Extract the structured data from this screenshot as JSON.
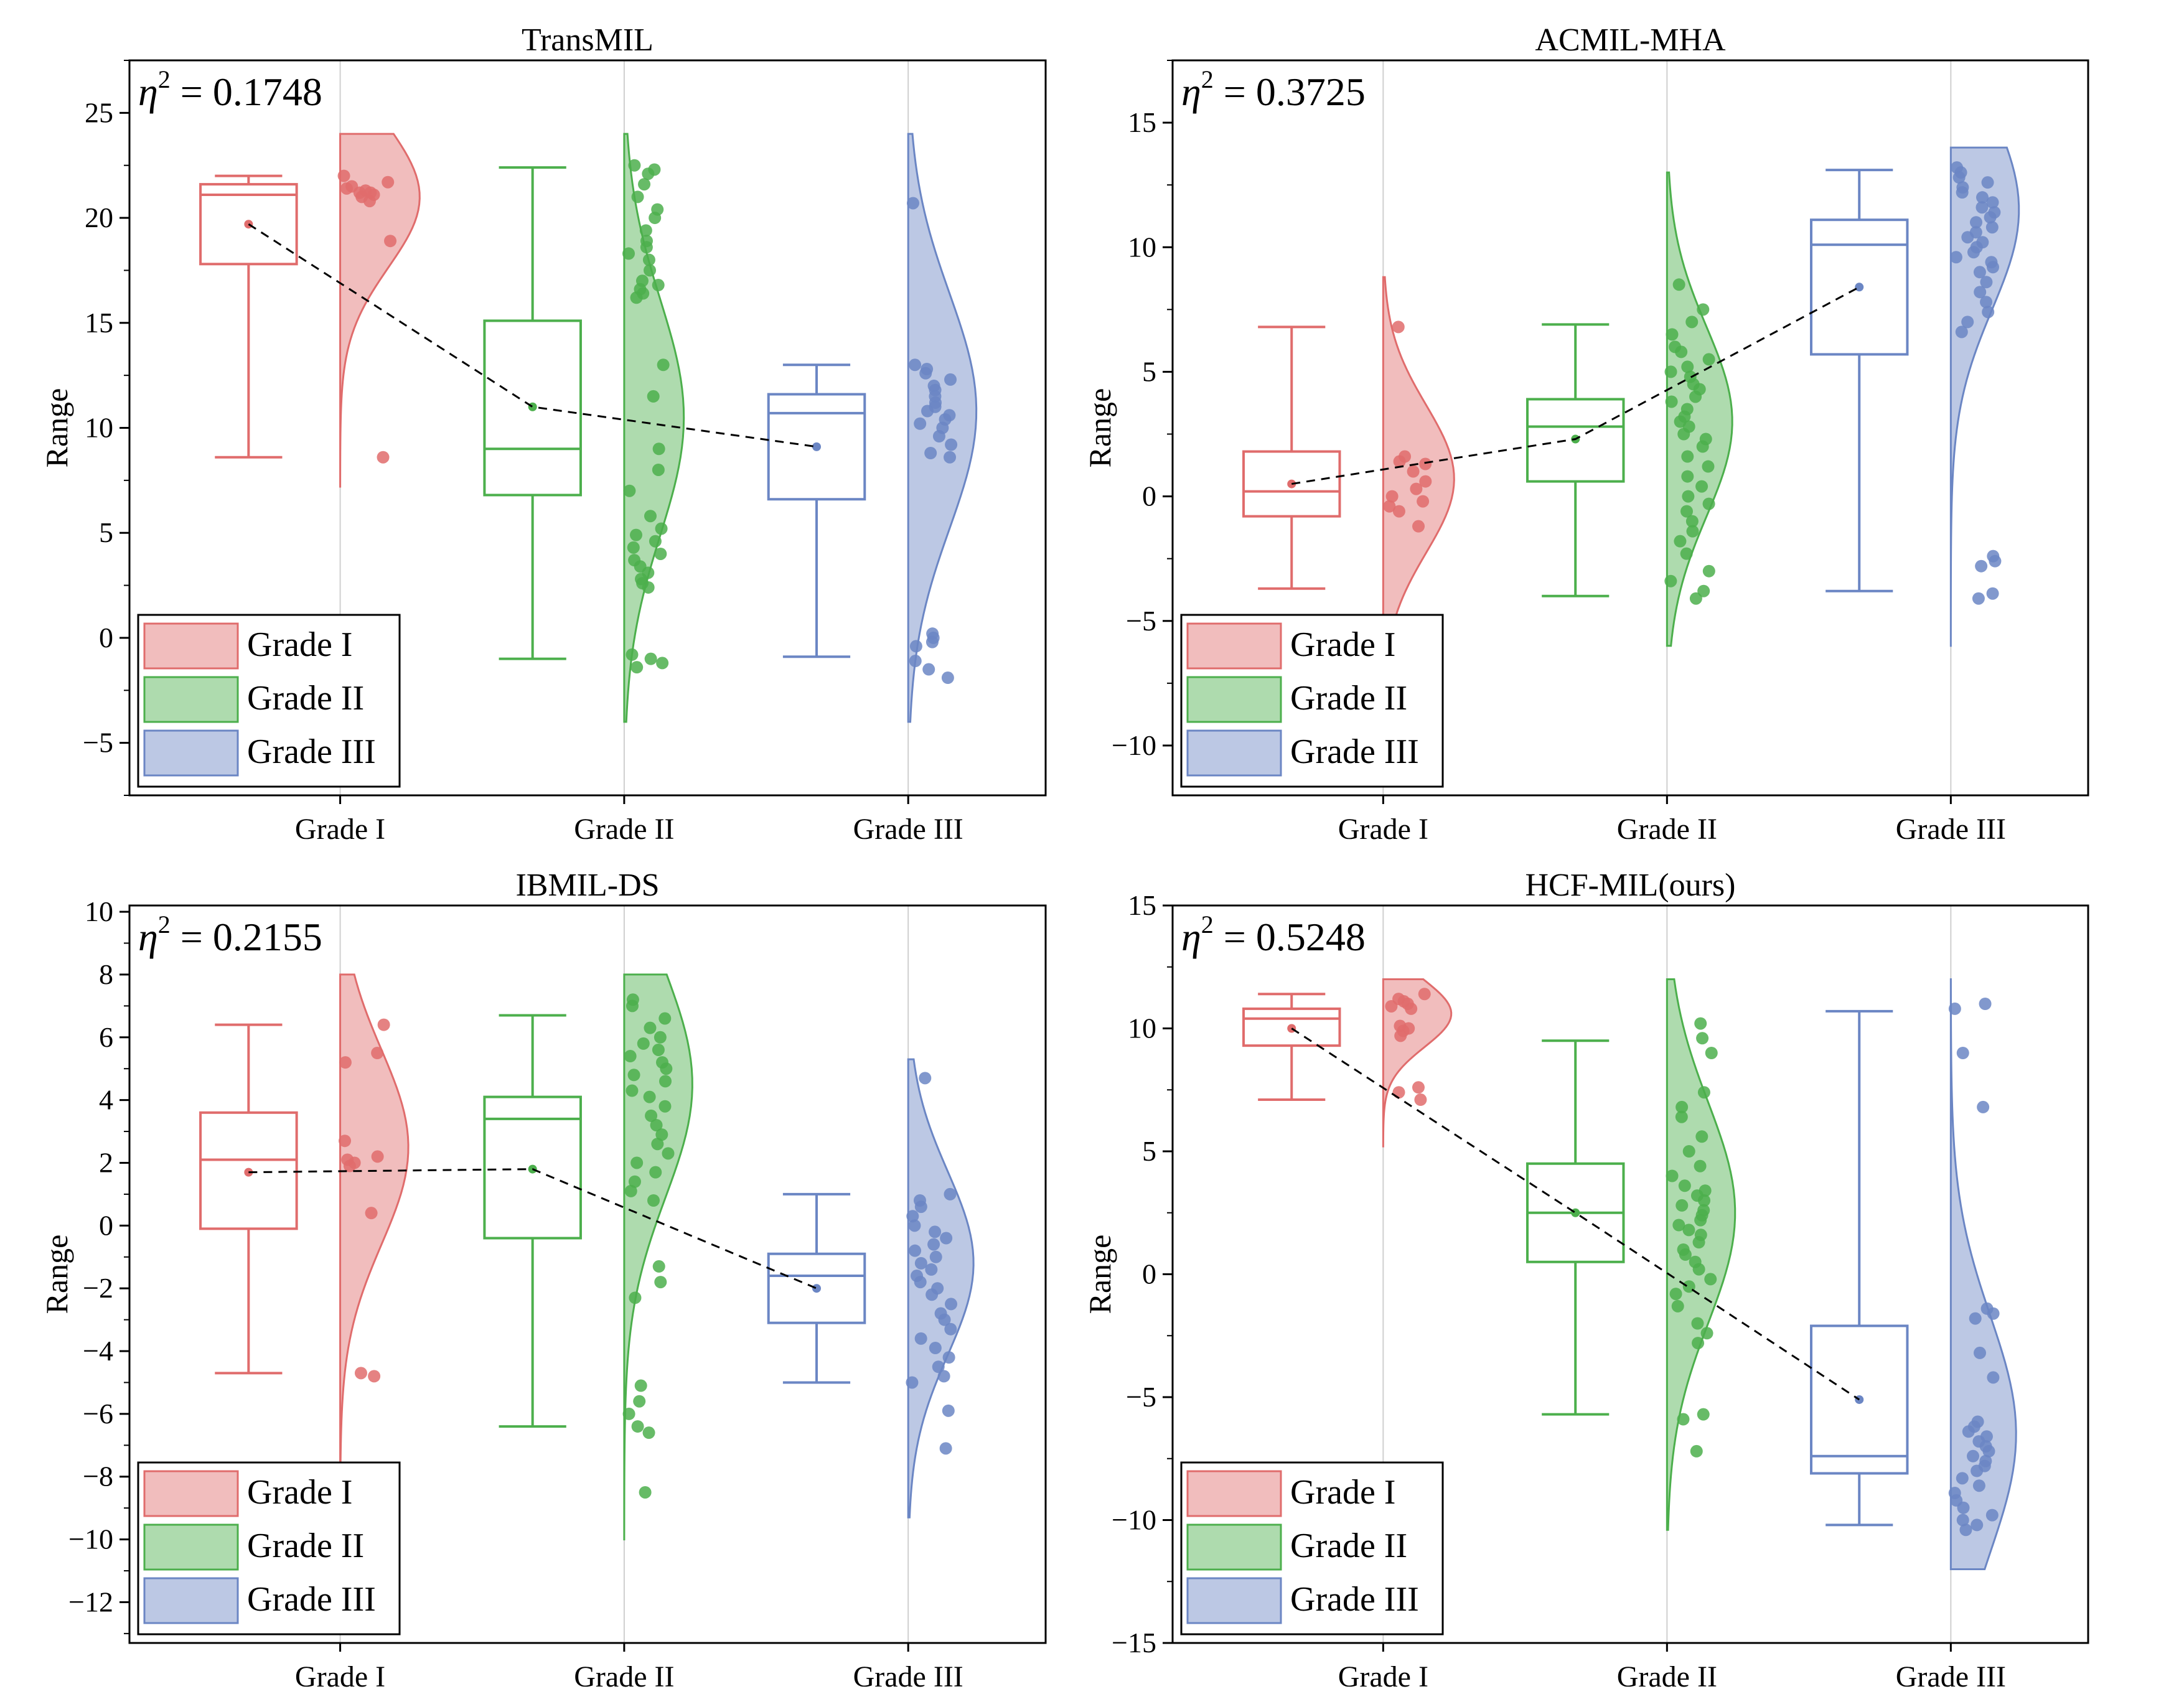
{
  "colors": {
    "grade1": "#e06c6c",
    "grade2": "#4caf4c",
    "grade3": "#6b86c4"
  },
  "legend_labels": [
    "Grade I",
    "Grade II",
    "Grade III"
  ],
  "chart_data": [
    {
      "type": "box+violin",
      "title": "TransMIL",
      "ylabel": "Range",
      "annotation": "0.1748",
      "ylim": [
        -7.5,
        27.5
      ],
      "yticks": [
        -5,
        0,
        5,
        10,
        15,
        20,
        25
      ],
      "categories": [
        "Grade I",
        "Grade II",
        "Grade III"
      ],
      "groups": [
        {
          "name": "Grade I",
          "box": {
            "min": 8.6,
            "q1": 17.8,
            "median": 21.1,
            "q3": 21.6,
            "max": 22.0
          },
          "mean": 19.7,
          "violin": {
            "low": 7.2,
            "high": 24.0,
            "peak": 21.0,
            "width": 0.28
          },
          "points": [
            22.0,
            21.7,
            21.4,
            21.2,
            21.0,
            21.3,
            21.1,
            21.5,
            21.2,
            20.8,
            18.9,
            8.6
          ]
        },
        {
          "name": "Grade II",
          "box": {
            "min": -1.0,
            "q1": 6.8,
            "median": 9.0,
            "q3": 15.1,
            "max": 22.4
          },
          "mean": 11.0,
          "violin": {
            "low": -4.0,
            "high": 24.0,
            "peak": 10.5,
            "width": 0.21
          },
          "points": [
            22.5,
            22.3,
            22.1,
            21.6,
            21.0,
            20.4,
            20.0,
            19.4,
            18.9,
            18.6,
            18.3,
            18.0,
            17.5,
            17.0,
            16.8,
            16.6,
            16.4,
            16.2,
            13.0,
            11.5,
            9.0,
            8.0,
            7.0,
            5.8,
            5.2,
            4.9,
            4.6,
            4.3,
            4.0,
            3.7,
            3.4,
            3.1,
            2.8,
            2.6,
            2.4,
            -0.8,
            -1.0,
            -1.2,
            -1.4
          ]
        },
        {
          "name": "Grade III",
          "box": {
            "min": -0.9,
            "q1": 6.6,
            "median": 10.7,
            "q3": 11.6,
            "max": 13.0
          },
          "mean": 9.1,
          "violin": {
            "low": -4.0,
            "high": 24.0,
            "peak": 10.8,
            "width": 0.24
          },
          "points": [
            20.7,
            13.0,
            12.8,
            12.6,
            12.3,
            12.0,
            11.8,
            11.5,
            11.2,
            11.0,
            10.8,
            10.6,
            10.4,
            10.2,
            10.0,
            9.6,
            9.2,
            8.8,
            8.6,
            0.2,
            0.0,
            -0.2,
            -0.4,
            -1.1,
            -1.5,
            -1.9
          ]
        }
      ]
    },
    {
      "type": "box+violin",
      "title": "ACMIL-MHA",
      "ylabel": "Range",
      "annotation": "0.3725",
      "ylim": [
        -12,
        17.5
      ],
      "yticks": [
        -10,
        -5,
        0,
        5,
        10,
        15
      ],
      "categories": [
        "Grade I",
        "Grade II",
        "Grade III"
      ],
      "groups": [
        {
          "name": "Grade I",
          "box": {
            "min": -3.7,
            "q1": -0.8,
            "median": 0.2,
            "q3": 1.8,
            "max": 6.8
          },
          "mean": 0.5,
          "violin": {
            "low": -6.0,
            "high": 8.8,
            "peak": 0.7,
            "width": 0.25
          },
          "points": [
            6.8,
            1.6,
            1.4,
            1.3,
            1.0,
            0.6,
            0.3,
            0.0,
            -0.2,
            -0.4,
            -0.6,
            -1.2
          ]
        },
        {
          "name": "Grade II",
          "box": {
            "min": -4.0,
            "q1": 0.6,
            "median": 2.8,
            "q3": 3.9,
            "max": 6.9
          },
          "mean": 2.3,
          "violin": {
            "low": -6.0,
            "high": 13.0,
            "peak": 3.0,
            "width": 0.23
          },
          "points": [
            8.5,
            7.5,
            7.0,
            6.5,
            6.0,
            5.8,
            5.5,
            5.2,
            5.0,
            4.8,
            4.5,
            4.3,
            4.0,
            3.8,
            3.5,
            3.2,
            3.0,
            2.8,
            2.5,
            2.3,
            2.0,
            1.6,
            1.2,
            0.8,
            0.4,
            0.0,
            -0.3,
            -0.6,
            -1.0,
            -1.4,
            -1.8,
            -2.3,
            -3.0,
            -3.4,
            -3.8,
            -4.1
          ]
        },
        {
          "name": "Grade III",
          "box": {
            "min": -3.8,
            "q1": 5.7,
            "median": 10.1,
            "q3": 11.1,
            "max": 13.1
          },
          "mean": 8.4,
          "violin": {
            "low": -6.0,
            "high": 14.0,
            "peak": 11.5,
            "width": 0.24
          },
          "points": [
            13.2,
            13.0,
            12.8,
            12.6,
            12.4,
            12.2,
            12.0,
            11.8,
            11.6,
            11.4,
            11.2,
            11.0,
            10.8,
            10.6,
            10.4,
            10.2,
            10.0,
            9.8,
            9.6,
            9.4,
            9.2,
            9.0,
            8.6,
            8.2,
            7.8,
            7.4,
            7.0,
            6.6,
            -2.4,
            -2.6,
            -2.8,
            -3.9,
            -4.1
          ]
        }
      ]
    },
    {
      "type": "box+violin",
      "title": "IBMIL-DS",
      "ylabel": "Range",
      "annotation": "0.2155",
      "ylim": [
        -13.3,
        10.2
      ],
      "yticks": [
        -12,
        -10,
        -8,
        -6,
        -4,
        -2,
        0,
        2,
        4,
        6,
        8,
        10
      ],
      "categories": [
        "Grade I",
        "Grade II",
        "Grade III"
      ],
      "groups": [
        {
          "name": "Grade I",
          "box": {
            "min": -4.7,
            "q1": -0.1,
            "median": 2.1,
            "q3": 3.6,
            "max": 6.4
          },
          "mean": 1.7,
          "violin": {
            "low": -7.5,
            "high": 8.0,
            "peak": 2.5,
            "width": 0.24
          },
          "points": [
            6.4,
            5.5,
            5.2,
            2.7,
            2.2,
            2.1,
            2.0,
            1.9,
            0.4,
            -4.7,
            -4.8
          ]
        },
        {
          "name": "Grade II",
          "box": {
            "min": -6.4,
            "q1": -0.4,
            "median": 3.4,
            "q3": 4.1,
            "max": 6.7
          },
          "mean": 1.8,
          "violin": {
            "low": -10.0,
            "high": 8.0,
            "peak": 4.5,
            "width": 0.24
          },
          "points": [
            7.2,
            7.0,
            6.6,
            6.3,
            6.0,
            5.8,
            5.6,
            5.4,
            5.2,
            5.0,
            4.8,
            4.6,
            4.3,
            4.1,
            3.8,
            3.5,
            3.2,
            2.9,
            2.6,
            2.3,
            2.0,
            1.7,
            1.4,
            1.1,
            0.8,
            -1.3,
            -1.8,
            -2.3,
            -5.1,
            -5.6,
            -6.0,
            -6.4,
            -6.6,
            -8.5
          ]
        },
        {
          "name": "Grade III",
          "box": {
            "min": -5.0,
            "q1": -3.1,
            "median": -1.6,
            "q3": -0.9,
            "max": 1.0
          },
          "mean": -2.0,
          "violin": {
            "low": -9.3,
            "high": 5.3,
            "peak": -1.2,
            "width": 0.23
          },
          "points": [
            4.7,
            1.0,
            0.8,
            0.6,
            0.3,
            0.0,
            -0.2,
            -0.4,
            -0.6,
            -0.8,
            -1.0,
            -1.2,
            -1.4,
            -1.6,
            -1.8,
            -2.0,
            -2.2,
            -2.5,
            -2.8,
            -3.0,
            -3.3,
            -3.6,
            -3.9,
            -4.2,
            -4.5,
            -4.8,
            -5.0,
            -5.9,
            -7.1
          ]
        }
      ]
    },
    {
      "type": "box+violin",
      "title": "HCF-MIL(ours)",
      "ylabel": "Range",
      "annotation": "0.5248",
      "ylim": [
        -15,
        15
      ],
      "yticks": [
        -15,
        -10,
        -5,
        0,
        5,
        10,
        15
      ],
      "categories": [
        "Grade I",
        "Grade II",
        "Grade III"
      ],
      "groups": [
        {
          "name": "Grade I",
          "box": {
            "min": 7.1,
            "q1": 9.3,
            "median": 10.4,
            "q3": 10.8,
            "max": 11.4
          },
          "mean": 10.0,
          "violin": {
            "low": 5.2,
            "high": 12.0,
            "peak": 10.6,
            "width": 0.24
          },
          "points": [
            11.4,
            11.2,
            11.1,
            11.0,
            10.9,
            10.8,
            10.1,
            10.0,
            9.9,
            9.7,
            7.6,
            7.4,
            7.1
          ]
        },
        {
          "name": "Grade II",
          "box": {
            "min": -5.7,
            "q1": 0.5,
            "median": 2.5,
            "q3": 4.5,
            "max": 9.5
          },
          "mean": 2.5,
          "violin": {
            "low": -10.4,
            "high": 12.0,
            "peak": 2.5,
            "width": 0.24
          },
          "points": [
            10.2,
            9.6,
            9.0,
            7.4,
            6.8,
            6.4,
            5.6,
            5.0,
            4.4,
            4.0,
            3.6,
            3.4,
            3.2,
            3.0,
            2.8,
            2.6,
            2.4,
            2.2,
            2.0,
            1.8,
            1.6,
            1.3,
            1.0,
            0.8,
            0.5,
            0.2,
            -0.2,
            -0.5,
            -0.8,
            -1.3,
            -2.0,
            -2.4,
            -2.8,
            -5.7,
            -5.9,
            -7.2
          ]
        },
        {
          "name": "Grade III",
          "box": {
            "min": -10.2,
            "q1": -8.1,
            "median": -7.4,
            "q3": -2.1,
            "max": 10.7
          },
          "mean": -5.1,
          "violin": {
            "low": -12.0,
            "high": 12.0,
            "peak": -6.5,
            "width": 0.23
          },
          "points": [
            11.0,
            10.8,
            9.0,
            6.8,
            -1.4,
            -1.6,
            -1.8,
            -3.2,
            -4.2,
            -6.0,
            -6.2,
            -6.4,
            -6.6,
            -6.8,
            -7.0,
            -7.2,
            -7.4,
            -7.6,
            -7.8,
            -8.0,
            -8.3,
            -8.6,
            -8.9,
            -9.2,
            -9.5,
            -9.8,
            -10.0,
            -10.2,
            -10.4
          ]
        }
      ]
    }
  ]
}
